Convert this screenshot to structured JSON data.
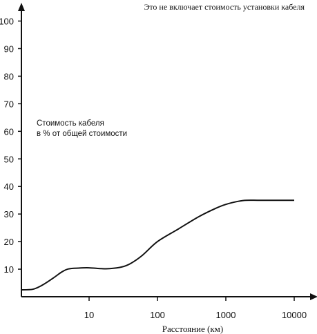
{
  "chart_data": {
    "type": "line",
    "x_scale": "log",
    "xlim": [
      1,
      20000
    ],
    "ylim": [
      0,
      105
    ],
    "grid": false,
    "xlabel": "Расстояние (км)",
    "ylabel": "",
    "note": "Это не включает стоимость установки кабеля",
    "annotation": [
      "Стоимость кабеля",
      "в % от общей стоимости"
    ],
    "x_ticks": [
      {
        "value": 10,
        "label": "10"
      },
      {
        "value": 100,
        "label": "100"
      },
      {
        "value": 1000,
        "label": "1000"
      },
      {
        "value": 10000,
        "label": "10000"
      }
    ],
    "y_ticks": [
      {
        "value": 10,
        "label": "10"
      },
      {
        "value": 20,
        "label": "20"
      },
      {
        "value": 30,
        "label": "30"
      },
      {
        "value": 40,
        "label": "40"
      },
      {
        "value": 50,
        "label": "50"
      },
      {
        "value": 60,
        "label": "60"
      },
      {
        "value": 70,
        "label": "70"
      },
      {
        "value": 80,
        "label": "80"
      },
      {
        "value": 90,
        "label": "90"
      },
      {
        "value": 100,
        "label": "100"
      }
    ],
    "series": [
      {
        "color": "#111111",
        "x": [
          1,
          1.5,
          2,
          3,
          4,
          5,
          7,
          10,
          15,
          20,
          30,
          40,
          60,
          100,
          200,
          400,
          700,
          1000,
          1500,
          2000,
          3000,
          5000,
          10000
        ],
        "y": [
          2.5,
          2.7,
          4,
          6.8,
          9,
          10.1,
          10.4,
          10.5,
          10.2,
          10.2,
          10.8,
          12,
          15,
          20,
          24.5,
          29,
          32,
          33.5,
          34.6,
          35,
          35,
          35,
          35
        ]
      }
    ]
  }
}
